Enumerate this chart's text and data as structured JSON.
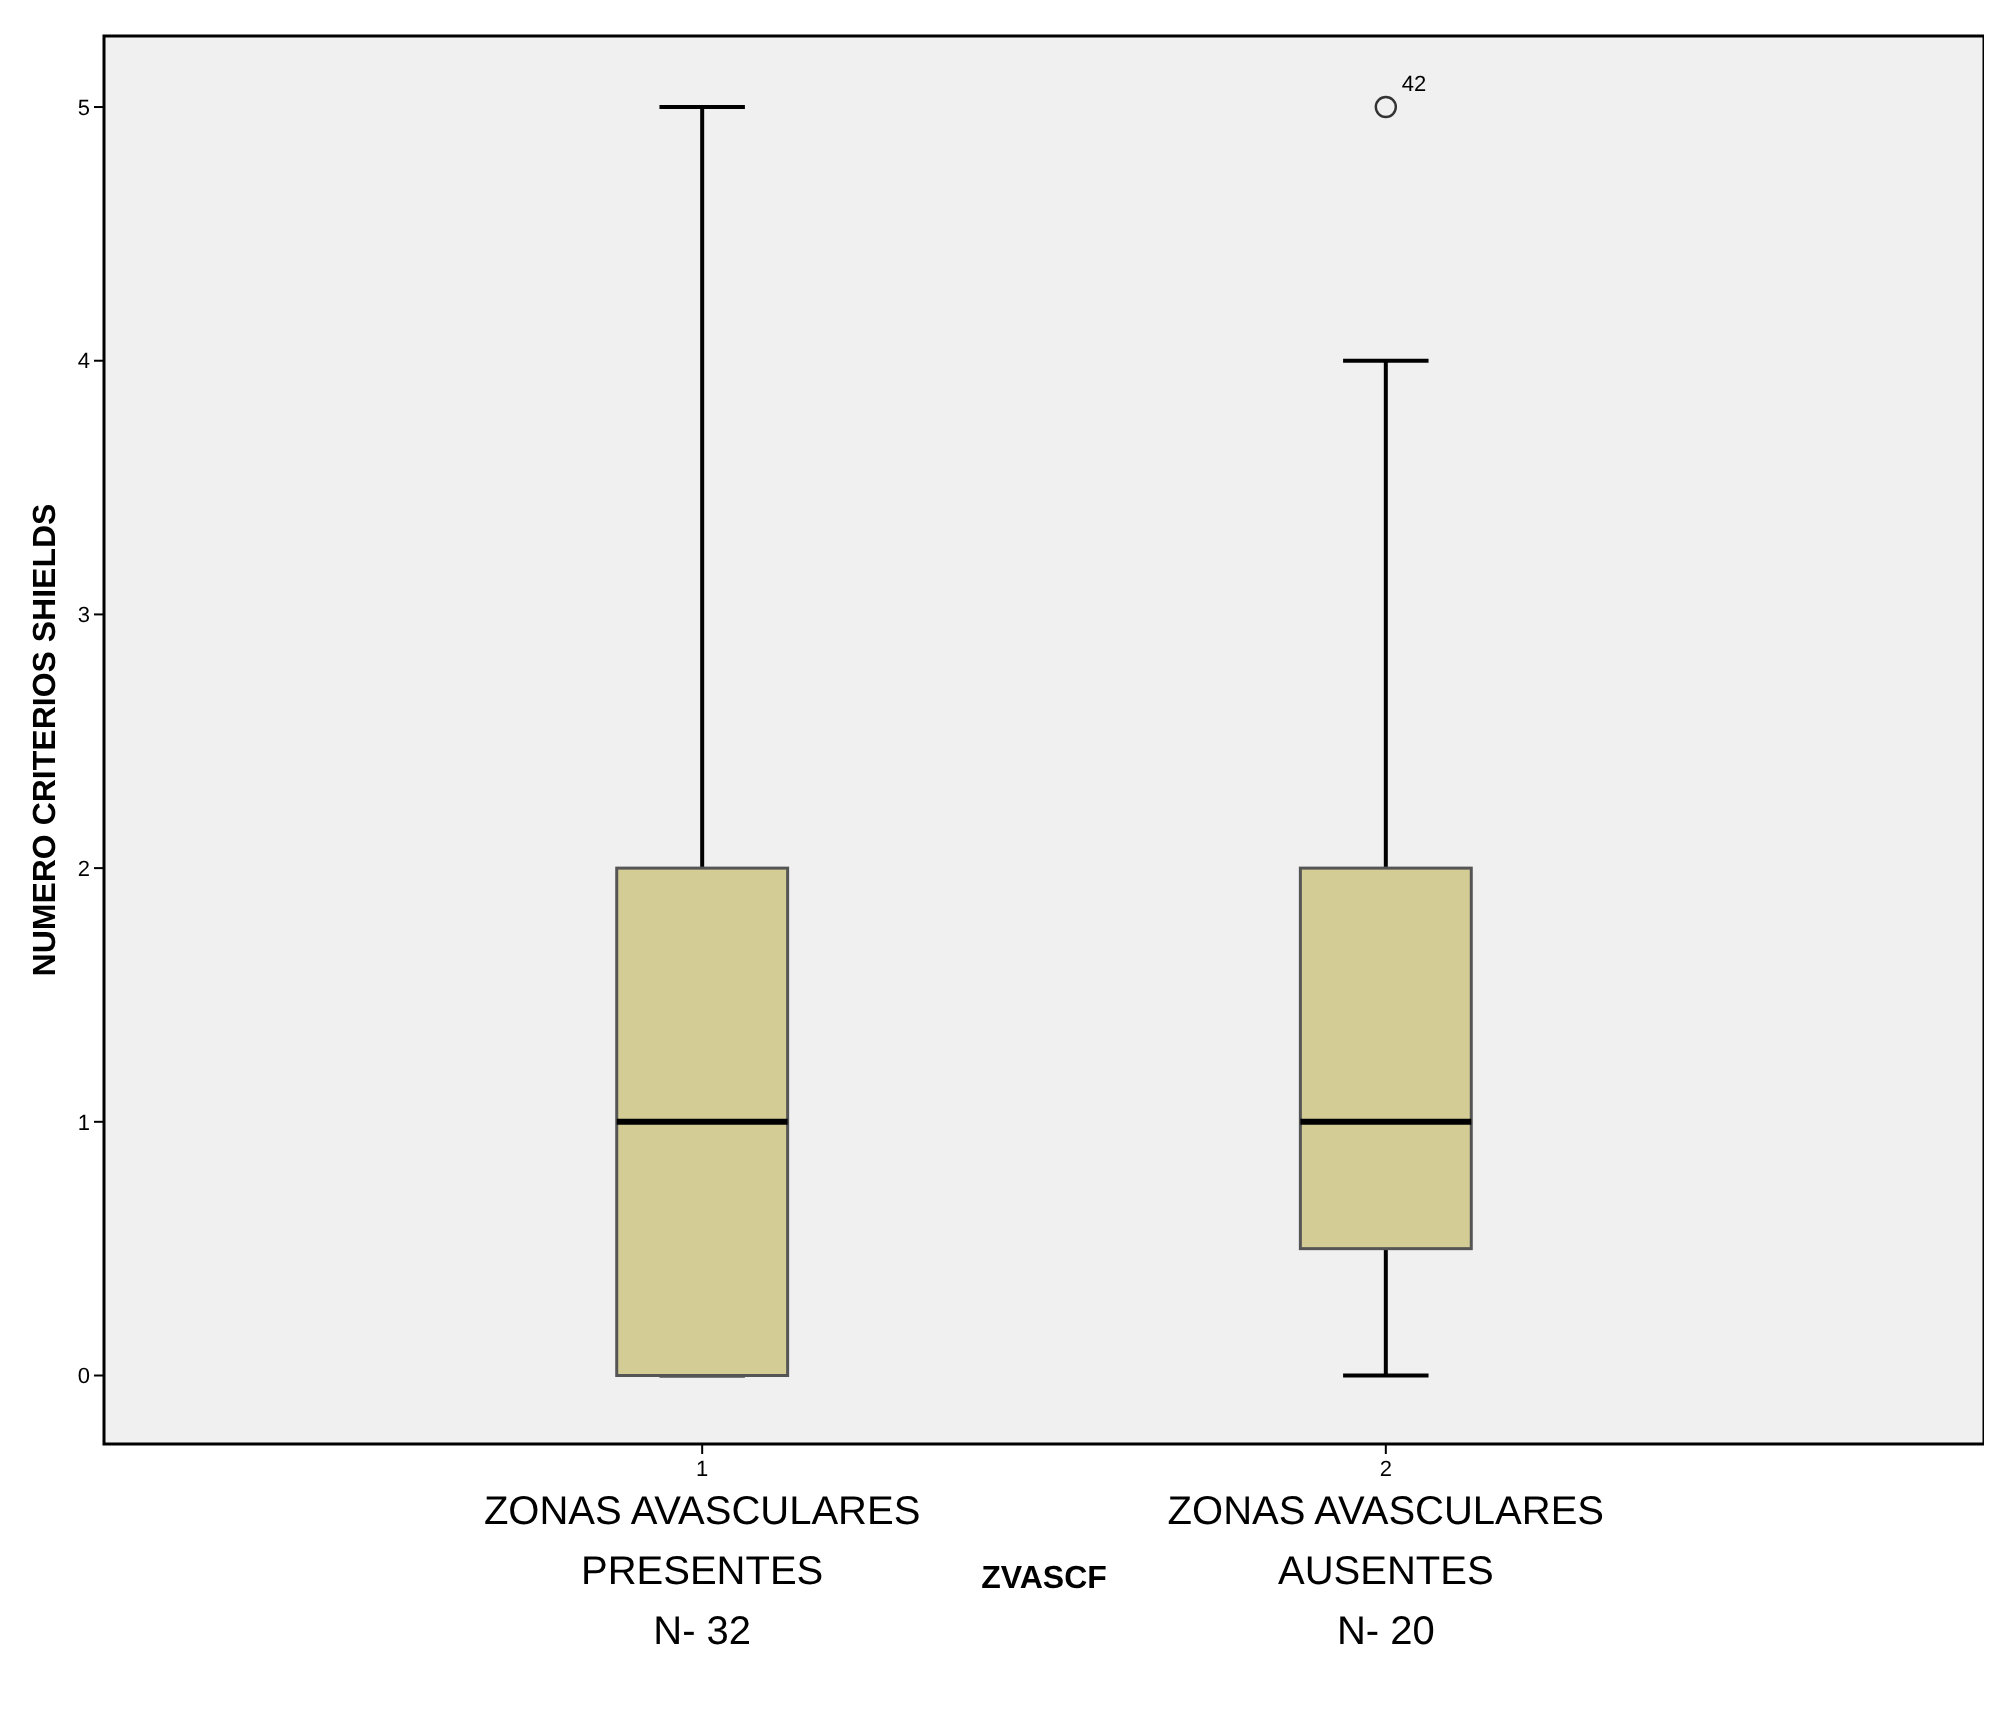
{
  "chart_data": {
    "type": "box",
    "xlabel": "ZVASCF",
    "ylabel": "NUMERO CRITERIOS SHIELDS",
    "categories": [
      "1",
      "2"
    ],
    "ylim": [
      -0.27,
      5.28
    ],
    "yticks": [
      0,
      1,
      2,
      3,
      4,
      5
    ],
    "grid": false,
    "series": [
      {
        "color": "#d3cd95",
        "boxes": [
          {
            "low": 0,
            "q1": 0,
            "median": 1,
            "q3": 2,
            "high": 5
          },
          {
            "low": 0,
            "q1": 0.5,
            "median": 1,
            "q3": 2,
            "high": 4,
            "outliers": [
              5
            ]
          }
        ]
      }
    ],
    "annotations": [
      "ZONAS AVASCULARES\nPRESENTES\nN- 32",
      "ZONAS AVASCULARES\nAUSENTES\nN- 20",
      "42"
    ]
  }
}
